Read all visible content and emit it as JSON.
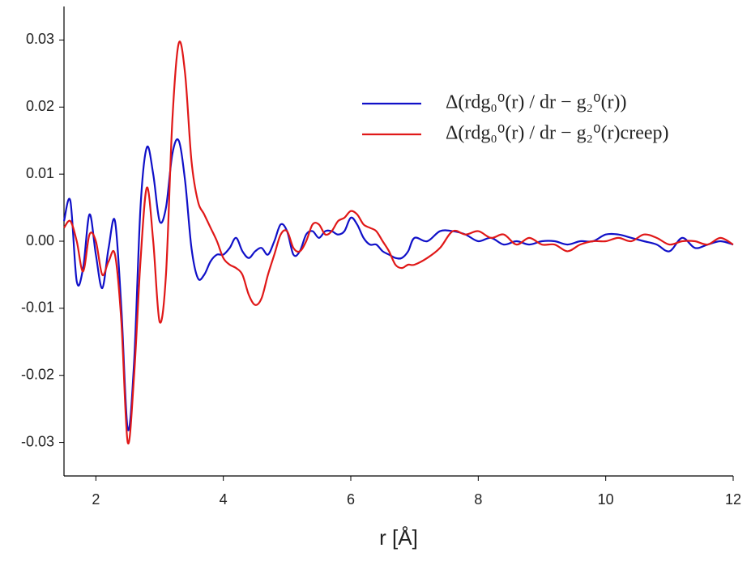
{
  "chart_data": {
    "type": "line",
    "x_label": "r [Å]",
    "x": [
      1.5,
      1.6,
      1.7,
      1.8,
      1.9,
      2.0,
      2.1,
      2.2,
      2.3,
      2.4,
      2.5,
      2.6,
      2.7,
      2.8,
      2.9,
      3.0,
      3.1,
      3.2,
      3.3,
      3.4,
      3.5,
      3.6,
      3.7,
      3.8,
      3.9,
      4.0,
      4.1,
      4.2,
      4.3,
      4.4,
      4.5,
      4.6,
      4.7,
      4.8,
      4.9,
      5.0,
      5.1,
      5.2,
      5.3,
      5.4,
      5.5,
      5.6,
      5.7,
      5.8,
      5.9,
      6.0,
      6.1,
      6.2,
      6.3,
      6.4,
      6.5,
      6.6,
      6.7,
      6.8,
      6.9,
      7.0,
      7.2,
      7.4,
      7.6,
      7.8,
      8.0,
      8.2,
      8.4,
      8.6,
      8.8,
      9.0,
      9.2,
      9.4,
      9.6,
      9.8,
      10.0,
      10.2,
      10.4,
      10.6,
      10.8,
      11.0,
      11.2,
      11.4,
      11.6,
      11.8,
      12.0
    ],
    "series": [
      {
        "name": "Δ(rdg₀⁰(r) / dr − g₂⁰(r))",
        "color": "#1010c8",
        "values": [
          0.003,
          0.006,
          -0.006,
          -0.004,
          0.004,
          -0.002,
          -0.007,
          -0.001,
          0.003,
          -0.01,
          -0.028,
          -0.018,
          0.005,
          0.014,
          0.01,
          0.003,
          0.005,
          0.013,
          0.015,
          0.009,
          -0.001,
          -0.0055,
          -0.005,
          -0.003,
          -0.002,
          -0.002,
          -0.001,
          0.0005,
          -0.0015,
          -0.0025,
          -0.0015,
          -0.001,
          -0.002,
          0,
          0.0025,
          0.0015,
          -0.002,
          -0.0015,
          0.001,
          0.0015,
          0.0005,
          0.0015,
          0.0015,
          0.001,
          0.0015,
          0.0035,
          0.0025,
          0.0005,
          -0.0005,
          -0.0005,
          -0.0015,
          -0.002,
          -0.0025,
          -0.0025,
          -0.0015,
          0.0005,
          0,
          0.0015,
          0.0015,
          0.001,
          0,
          0.0005,
          -0.0005,
          0,
          -0.0005,
          0,
          0,
          -0.0005,
          0,
          0,
          0.001,
          0.001,
          0.0005,
          0,
          -0.0005,
          -0.0015,
          0.0005,
          -0.001,
          -0.0005,
          0,
          -0.0005
        ]
      },
      {
        "name": "Δ(rdg₀⁰(r) / dr − g₂⁰(r)creep)",
        "color": "#e01818",
        "values": [
          0.002,
          0.003,
          0,
          -0.0045,
          0.001,
          0,
          -0.005,
          -0.003,
          -0.002,
          -0.012,
          -0.03,
          -0.02,
          -0.003,
          0.008,
          0,
          -0.012,
          -0.005,
          0.018,
          0.0295,
          0.025,
          0.012,
          0.006,
          0.004,
          0.002,
          0,
          -0.0025,
          -0.0035,
          -0.004,
          -0.005,
          -0.008,
          -0.0095,
          -0.0085,
          -0.005,
          -0.002,
          0.001,
          0.0015,
          -0.001,
          -0.0015,
          0,
          0.0025,
          0.0025,
          0.001,
          0.0015,
          0.003,
          0.0035,
          0.0045,
          0.004,
          0.0025,
          0.002,
          0.0015,
          0,
          -0.0015,
          -0.0035,
          -0.004,
          -0.0035,
          -0.0035,
          -0.0025,
          -0.001,
          0.0015,
          0.001,
          0.0015,
          0.0005,
          0.001,
          -0.0005,
          0.0005,
          -0.0005,
          -0.0005,
          -0.0015,
          -0.0005,
          0,
          0,
          0.0005,
          0,
          0.001,
          0.0005,
          -0.0005,
          0,
          0,
          -0.0005,
          0.0005,
          -0.0005
        ]
      }
    ],
    "xlim": [
      1.5,
      12
    ],
    "xticks": [
      2,
      4,
      6,
      8,
      10,
      12
    ],
    "ylim": [
      -0.035,
      0.035
    ],
    "yticks": [
      -0.03,
      -0.02,
      -0.01,
      {
        "value": 0,
        "label": "0.00"
      },
      0.01,
      0.02,
      0.03
    ],
    "legend": "upper right"
  }
}
